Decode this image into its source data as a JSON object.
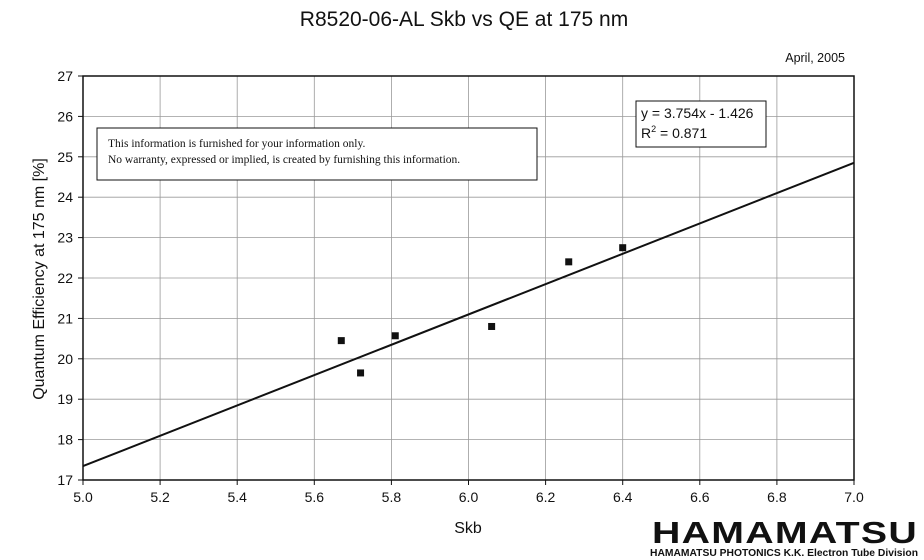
{
  "header": {
    "title": "R8520-06-AL Skb vs QE at 175 nm",
    "date": "April, 2005"
  },
  "disclaimer": {
    "line1": "This information is furnished for your information only.",
    "line2": "No warranty, expressed or implied, is created by furnishing this information."
  },
  "fit_box": {
    "equation": "y = 3.754x - 1.426",
    "r2_prefix": "R",
    "r2_exp": "2",
    "r2_value": " = 0.871"
  },
  "logo": {
    "brand": "HAMAMATSU",
    "division": "HAMAMATSU PHOTONICS K.K. Electron Tube Division"
  },
  "colors": {
    "ink": "#111111",
    "grid": "#9a9a9a"
  },
  "chart_data": {
    "type": "scatter",
    "title": "R8520-06-AL Skb vs QE at 175 nm",
    "xlabel": "Skb",
    "ylabel": "Quantum Efficiency at 175 nm [%]",
    "xlim": [
      5.0,
      7.0
    ],
    "ylim": [
      17,
      27
    ],
    "x_ticks": [
      5.0,
      5.2,
      5.4,
      5.6,
      5.8,
      6.0,
      6.2,
      6.4,
      6.6,
      6.8,
      7.0
    ],
    "x_tick_labels": [
      "5.0",
      "5.2",
      "5.4",
      "5.6",
      "5.8",
      "6.0",
      "6.2",
      "6.4",
      "6.6",
      "6.8",
      "7.0"
    ],
    "y_ticks": [
      17,
      18,
      19,
      20,
      21,
      22,
      23,
      24,
      25,
      26,
      27
    ],
    "y_tick_labels": [
      "17",
      "18",
      "19",
      "20",
      "21",
      "22",
      "23",
      "24",
      "25",
      "26",
      "27"
    ],
    "grid": true,
    "points": [
      {
        "x": 5.67,
        "y": 20.45
      },
      {
        "x": 5.72,
        "y": 19.65
      },
      {
        "x": 5.81,
        "y": 20.57
      },
      {
        "x": 6.06,
        "y": 20.8
      },
      {
        "x": 6.26,
        "y": 22.4
      },
      {
        "x": 6.4,
        "y": 22.75
      }
    ],
    "trendline": {
      "slope": 3.754,
      "intercept": -1.426,
      "r2": 0.871
    }
  }
}
